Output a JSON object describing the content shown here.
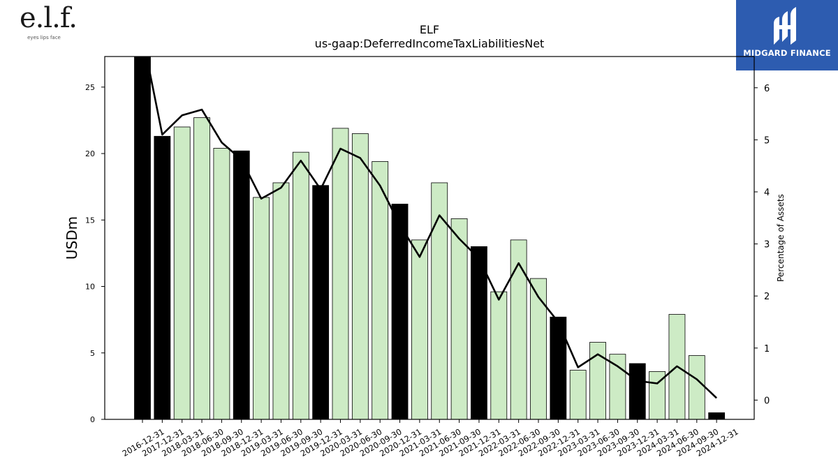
{
  "branding": {
    "left_logo_mark": "e.l.f.",
    "left_logo_tagline": "eyes lips face",
    "right_logo_text": "MIDGARD FINANCE",
    "right_logo_color": "#2d5cb0"
  },
  "chart_data": {
    "type": "bar",
    "title": "ELF",
    "subtitle": "us-gaap:DeferredIncomeTaxLiabilitiesNet",
    "ylabel": "USDm",
    "y2label": "Percentage of Assets",
    "ylim": [
      0,
      27.3
    ],
    "y2lim": [
      -0.37,
      6.6
    ],
    "yticks": [
      0,
      5,
      10,
      15,
      20,
      25
    ],
    "y2ticks": [
      0,
      1,
      2,
      3,
      4,
      5,
      6
    ],
    "grid": false,
    "categories": [
      "2016-12-31",
      "2017-12-31",
      "2018-03-31",
      "2018-06-30",
      "2018-09-30",
      "2018-12-31",
      "2019-03-31",
      "2019-06-30",
      "2019-09-30",
      "2019-12-31",
      "2020-03-31",
      "2020-06-30",
      "2020-09-30",
      "2020-12-31",
      "2021-03-31",
      "2021-06-30",
      "2021-09-30",
      "2021-12-31",
      "2022-03-31",
      "2022-06-30",
      "2022-09-30",
      "2022-12-31",
      "2023-03-31",
      "2023-06-30",
      "2023-09-30",
      "2023-12-31",
      "2024-03-31",
      "2024-06-30",
      "2024-09-30",
      "2024-12-31"
    ],
    "series": [
      {
        "type": "bar",
        "values": [
          27.5,
          21.3,
          22.0,
          22.7,
          20.4,
          20.2,
          16.7,
          17.8,
          20.1,
          17.6,
          21.9,
          21.5,
          19.4,
          16.2,
          13.5,
          17.8,
          15.1,
          13.0,
          9.6,
          13.5,
          10.6,
          7.7,
          3.7,
          5.8,
          4.9,
          4.2,
          3.6,
          7.9,
          4.8,
          0.5
        ],
        "annual_flags": [
          true,
          true,
          false,
          false,
          false,
          true,
          false,
          false,
          false,
          true,
          false,
          false,
          false,
          true,
          false,
          false,
          false,
          true,
          false,
          false,
          false,
          true,
          false,
          false,
          false,
          true,
          false,
          false,
          false,
          true
        ],
        "annual_color": "#000000",
        "quarterly_color": "#cdebc5"
      },
      {
        "type": "line",
        "axis": "right",
        "color": "#000000",
        "values": [
          7.0,
          5.1,
          5.47,
          5.58,
          4.95,
          4.62,
          3.87,
          4.08,
          4.6,
          4.05,
          4.83,
          4.65,
          4.12,
          3.37,
          2.75,
          3.55,
          3.1,
          2.72,
          1.93,
          2.63,
          1.98,
          1.5,
          0.63,
          0.88,
          0.65,
          0.37,
          0.32,
          0.65,
          0.4,
          0.04
        ]
      }
    ]
  }
}
